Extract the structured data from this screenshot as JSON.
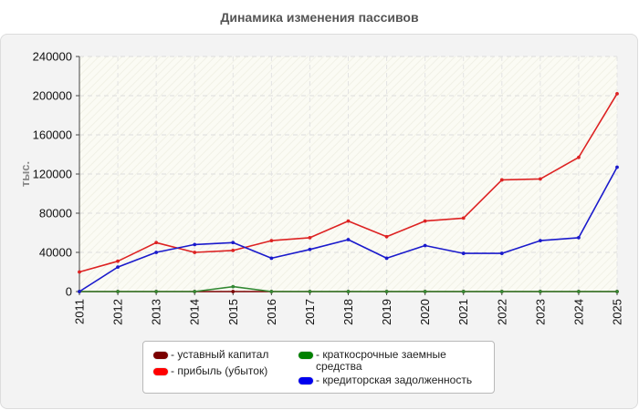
{
  "chart_data": {
    "type": "line",
    "title": "Динамика изменения пассивов",
    "ylabel": "тыс.",
    "xlabel": "",
    "ylim": [
      0,
      240000
    ],
    "yticks": [
      0,
      40000,
      80000,
      120000,
      160000,
      200000,
      240000
    ],
    "ytick_labels": [
      "0",
      "40000",
      "80000",
      "120000",
      "160000",
      "200000",
      "240000"
    ],
    "categories": [
      "2011",
      "2012",
      "2013",
      "2014",
      "2015",
      "2016",
      "2017",
      "2018",
      "2019",
      "2020",
      "2021",
      "2022",
      "2023",
      "2024",
      "2025"
    ],
    "grid": true,
    "legend_position": "bottom",
    "series": [
      {
        "name": "- уставный капитал",
        "color": "#7a0000",
        "values": [
          0,
          0,
          0,
          0,
          0,
          0,
          0,
          0,
          0,
          0,
          0,
          0,
          0,
          0,
          0
        ]
      },
      {
        "name": "- прибыль (убыток)",
        "color": "#ff0000",
        "line_color": "#dd2222",
        "values": [
          20000,
          31000,
          50000,
          40000,
          42000,
          52000,
          55000,
          72000,
          56000,
          72000,
          75000,
          114000,
          115000,
          137000,
          202000
        ]
      },
      {
        "name": "- краткосрочные заемные средства",
        "color": "#008000",
        "line_color": "#338833",
        "values": [
          0,
          0,
          0,
          0,
          5000,
          0,
          0,
          0,
          0,
          0,
          0,
          0,
          0,
          0,
          0
        ]
      },
      {
        "name": "- кредиторская задолженность",
        "color": "#0000ee",
        "line_color": "#1a1acc",
        "values": [
          0,
          25000,
          40000,
          48000,
          50000,
          34000,
          43000,
          53000,
          34000,
          47000,
          39000,
          39000,
          52000,
          55000,
          127000
        ]
      }
    ]
  },
  "legend": {
    "items": [
      {
        "label": "- уставный капитал",
        "color": "#7a0000"
      },
      {
        "label": "- краткосрочные заемные средства",
        "color": "#008000"
      },
      {
        "label": "- прибыль (убыток)",
        "color": "#ff0000"
      },
      {
        "label": "- кредиторская задолженность",
        "color": "#0000ee"
      }
    ]
  }
}
